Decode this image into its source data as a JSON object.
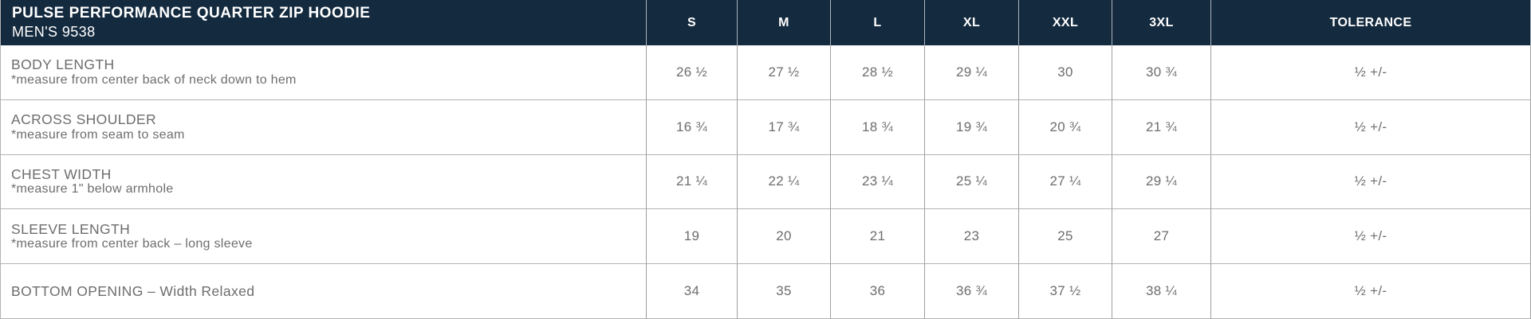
{
  "colors": {
    "header_bg": "#142A3F",
    "header_text": "#FFFFFF",
    "body_text": "#6D6D6D",
    "grid_line": "#9E9E9E"
  },
  "header": {
    "title": "PULSE PERFORMANCE QUARTER ZIP HOODIE",
    "subtitle": "MEN'S 9538",
    "columns": [
      "S",
      "M",
      "L",
      "XL",
      "XXL",
      "3XL",
      "TOLERANCE"
    ]
  },
  "rows": [
    {
      "label": "BODY LENGTH",
      "note": "*measure from center back of neck down to hem",
      "values": [
        "26 ½",
        "27 ½",
        "28 ½",
        "29 ¼",
        "30",
        "30 ¾"
      ],
      "tolerance": "½ +/-"
    },
    {
      "label": "ACROSS SHOULDER",
      "note": "*measure from seam to seam",
      "values": [
        "16 ¾",
        "17 ¾",
        "18 ¾",
        "19 ¾",
        "20 ¾",
        "21 ¾"
      ],
      "tolerance": "½ +/-"
    },
    {
      "label": "CHEST WIDTH",
      "note": "*measure 1\" below armhole",
      "values": [
        "21 ¼",
        "22 ¼",
        "23 ¼",
        "25 ¼",
        "27 ¼",
        "29 ¼"
      ],
      "tolerance": "½ +/-"
    },
    {
      "label": "SLEEVE LENGTH",
      "note": "*measure from center back – long sleeve",
      "values": [
        "19",
        "20",
        "21",
        "23",
        "25",
        "27"
      ],
      "tolerance": "½ +/-"
    },
    {
      "label": "BOTTOM OPENING – Width Relaxed",
      "note": "",
      "values": [
        "34",
        "35",
        "36",
        "36 ¾",
        "37 ½",
        "38 ¼"
      ],
      "tolerance": "½ +/-"
    }
  ]
}
